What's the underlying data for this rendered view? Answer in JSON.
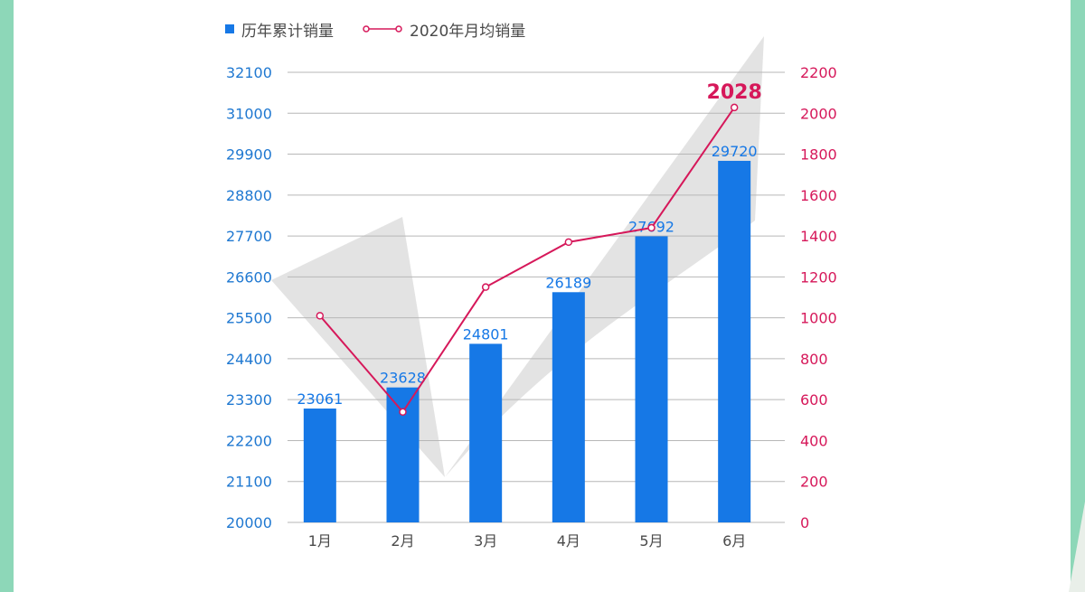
{
  "legend": {
    "bar_label": "历年累计销量",
    "line_label": "2020年月均销量"
  },
  "colors": {
    "bar": "#1678e6",
    "line": "#d6185a",
    "grid": "#b7b7b7",
    "left_axis_text": "#1f78d1",
    "right_axis_text": "#d6185a",
    "check_mark": "#e3e3e3",
    "side_panel": "#8dd7b8"
  },
  "chart_data": {
    "type": "bar",
    "categories": [
      "1月",
      "2月",
      "3月",
      "4月",
      "5月",
      "6月"
    ],
    "series": [
      {
        "name": "历年累计销量",
        "type": "bar",
        "axis": "left",
        "values": [
          23061,
          23628,
          24801,
          26189,
          27692,
          29720
        ]
      },
      {
        "name": "2020年月均销量",
        "type": "line",
        "axis": "right",
        "values": [
          1010,
          540,
          1150,
          1370,
          1440,
          2028
        ]
      }
    ],
    "left_axis_ticks": [
      20000,
      21100,
      22200,
      23300,
      24400,
      25500,
      26600,
      27700,
      28800,
      29900,
      31000,
      32100
    ],
    "right_axis_ticks": [
      0,
      200,
      400,
      600,
      800,
      1000,
      1200,
      1400,
      1600,
      1800,
      2000,
      2200
    ],
    "ylim_left": [
      20000,
      32100
    ],
    "ylim_right": [
      0,
      2200
    ],
    "highlight_label": "2028",
    "grid": true,
    "legend_position": "top-left"
  }
}
